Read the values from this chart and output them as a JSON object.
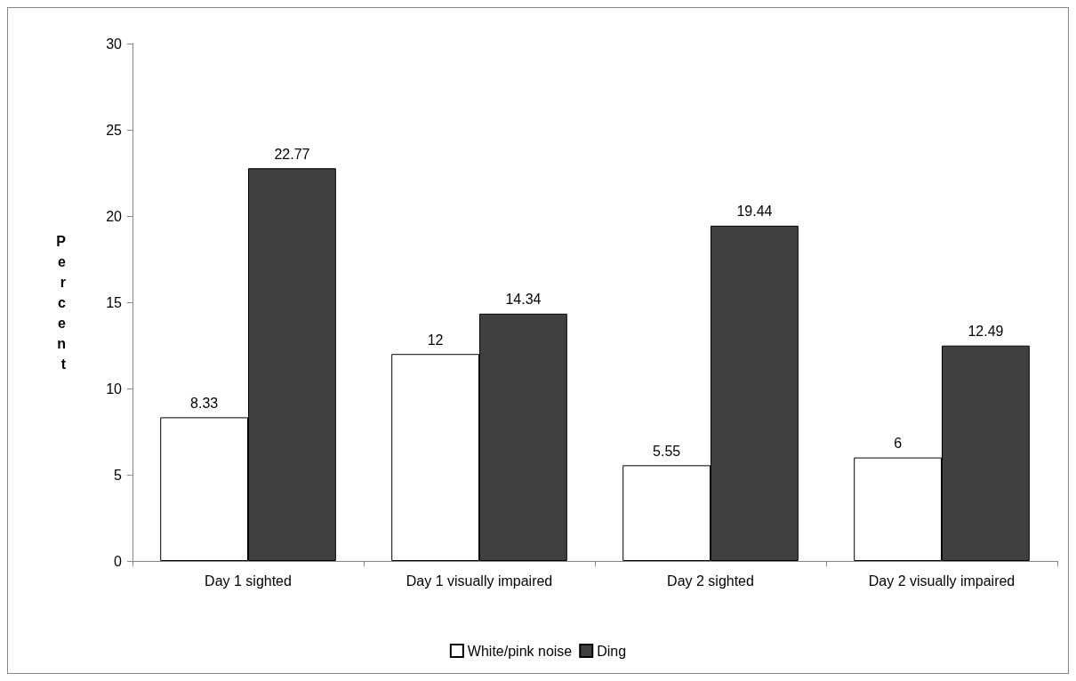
{
  "chart_data": {
    "type": "bar",
    "ylabel": "Percent",
    "categories": [
      "Day 1 sighted",
      "Day 1 visually impaired",
      "Day 2 sighted",
      "Day 2 visually impaired"
    ],
    "series": [
      {
        "name": "White/pink noise",
        "color": "#ffffff",
        "values": [
          8.33,
          12,
          5.55,
          6
        ]
      },
      {
        "name": "Ding",
        "color": "#404040",
        "values": [
          22.77,
          14.34,
          19.44,
          12.49
        ]
      }
    ],
    "ylim": [
      0,
      30
    ],
    "yticks": [
      0,
      5,
      10,
      15,
      20,
      25,
      30
    ],
    "grid": false,
    "legend": "bottom",
    "data_labels": true
  }
}
